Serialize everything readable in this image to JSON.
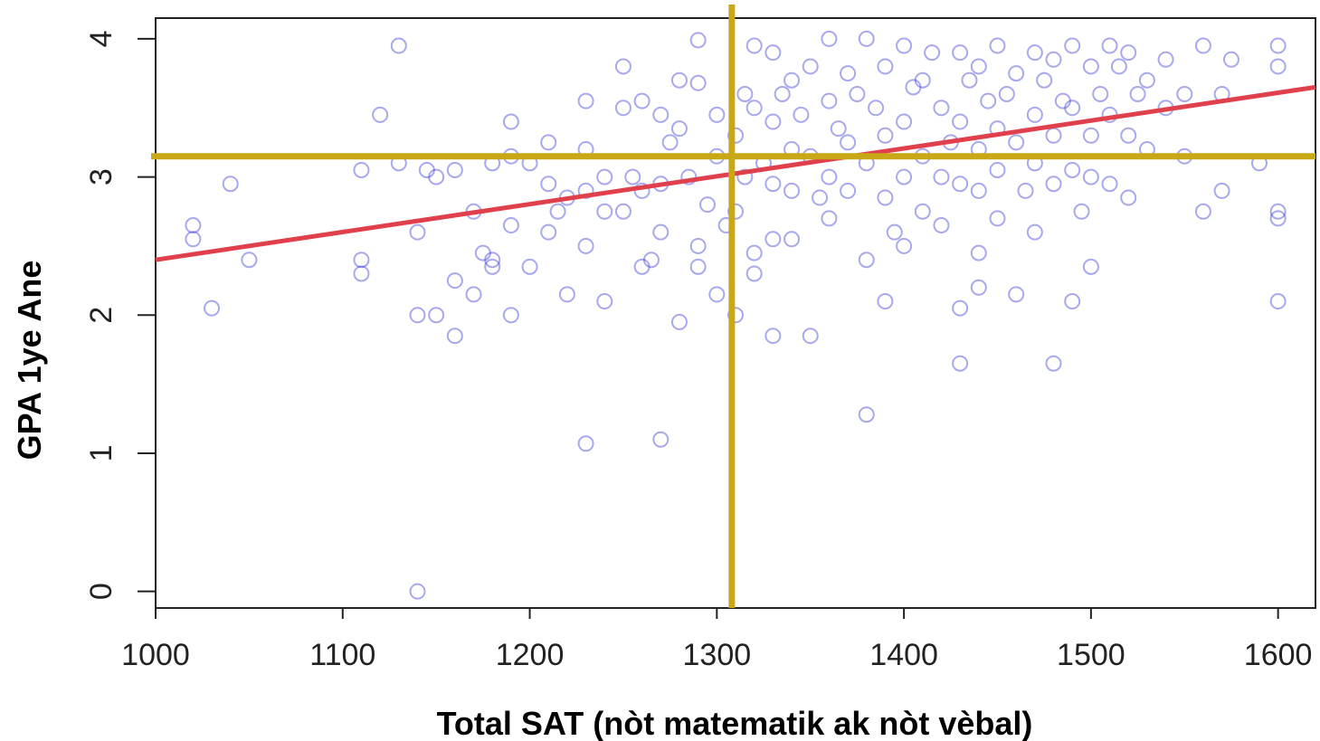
{
  "chart_data": {
    "type": "scatter",
    "title": "",
    "xlabel": "Total SAT (nòt matematik ak nòt vèbal)",
    "ylabel": "GPA 1ye Ane",
    "xlim": [
      1000,
      1620
    ],
    "ylim": [
      -0.12,
      4.15
    ],
    "x_ticks": [
      "1000",
      "1100",
      "1200",
      "1300",
      "1400",
      "1500",
      "1600"
    ],
    "y_ticks": [
      "0",
      "1",
      "2",
      "3",
      "4"
    ],
    "grid": false,
    "legend": "none",
    "colors": {
      "points": "#3d3fd6",
      "fit_line": "#e0404c",
      "mean_lines": "#c9a818"
    },
    "fit_line": {
      "x": [
        1000,
        1620
      ],
      "y": [
        2.4,
        3.65
      ]
    },
    "mean_lines": {
      "x_mean": 1308,
      "y_mean": 3.15
    },
    "points": [
      [
        1020,
        2.65
      ],
      [
        1020,
        2.55
      ],
      [
        1030,
        2.05
      ],
      [
        1040,
        2.95
      ],
      [
        1050,
        2.4
      ],
      [
        1110,
        2.4
      ],
      [
        1110,
        2.3
      ],
      [
        1110,
        3.05
      ],
      [
        1120,
        3.45
      ],
      [
        1130,
        3.95
      ],
      [
        1130,
        3.1
      ],
      [
        1140,
        2.6
      ],
      [
        1140,
        2.0
      ],
      [
        1140,
        0.0
      ],
      [
        1145,
        3.05
      ],
      [
        1150,
        2.0
      ],
      [
        1150,
        3.0
      ],
      [
        1160,
        2.25
      ],
      [
        1160,
        1.85
      ],
      [
        1160,
        3.05
      ],
      [
        1170,
        2.15
      ],
      [
        1170,
        2.75
      ],
      [
        1175,
        2.45
      ],
      [
        1180,
        2.4
      ],
      [
        1180,
        2.35
      ],
      [
        1180,
        3.1
      ],
      [
        1190,
        3.4
      ],
      [
        1190,
        2.0
      ],
      [
        1190,
        3.15
      ],
      [
        1190,
        2.65
      ],
      [
        1200,
        2.35
      ],
      [
        1200,
        3.1
      ],
      [
        1210,
        3.25
      ],
      [
        1210,
        2.6
      ],
      [
        1210,
        2.95
      ],
      [
        1215,
        2.75
      ],
      [
        1220,
        2.15
      ],
      [
        1220,
        2.85
      ],
      [
        1230,
        3.55
      ],
      [
        1230,
        3.2
      ],
      [
        1230,
        2.9
      ],
      [
        1230,
        2.5
      ],
      [
        1230,
        1.07
      ],
      [
        1240,
        2.1
      ],
      [
        1240,
        2.75
      ],
      [
        1240,
        3.0
      ],
      [
        1250,
        3.8
      ],
      [
        1250,
        3.5
      ],
      [
        1250,
        2.75
      ],
      [
        1255,
        3.0
      ],
      [
        1260,
        3.55
      ],
      [
        1260,
        2.35
      ],
      [
        1260,
        2.9
      ],
      [
        1265,
        2.4
      ],
      [
        1270,
        3.45
      ],
      [
        1270,
        2.95
      ],
      [
        1270,
        2.6
      ],
      [
        1270,
        1.1
      ],
      [
        1275,
        3.25
      ],
      [
        1280,
        3.7
      ],
      [
        1280,
        3.35
      ],
      [
        1280,
        1.95
      ],
      [
        1285,
        3.0
      ],
      [
        1290,
        3.68
      ],
      [
        1290,
        2.5
      ],
      [
        1290,
        2.35
      ],
      [
        1290,
        3.99
      ],
      [
        1295,
        2.8
      ],
      [
        1300,
        3.45
      ],
      [
        1300,
        2.15
      ],
      [
        1300,
        3.15
      ],
      [
        1305,
        2.65
      ],
      [
        1310,
        3.3
      ],
      [
        1310,
        2.75
      ],
      [
        1310,
        2.0
      ],
      [
        1315,
        3.6
      ],
      [
        1315,
        3.0
      ],
      [
        1320,
        3.95
      ],
      [
        1320,
        3.5
      ],
      [
        1320,
        2.45
      ],
      [
        1320,
        2.3
      ],
      [
        1325,
        3.1
      ],
      [
        1330,
        3.9
      ],
      [
        1330,
        3.4
      ],
      [
        1330,
        2.95
      ],
      [
        1330,
        2.55
      ],
      [
        1330,
        1.85
      ],
      [
        1335,
        3.6
      ],
      [
        1340,
        3.7
      ],
      [
        1340,
        3.2
      ],
      [
        1340,
        2.9
      ],
      [
        1340,
        2.55
      ],
      [
        1345,
        3.45
      ],
      [
        1350,
        3.8
      ],
      [
        1350,
        3.15
      ],
      [
        1350,
        1.85
      ],
      [
        1355,
        2.85
      ],
      [
        1360,
        4.0
      ],
      [
        1360,
        3.55
      ],
      [
        1360,
        3.0
      ],
      [
        1360,
        2.7
      ],
      [
        1365,
        3.35
      ],
      [
        1370,
        3.75
      ],
      [
        1370,
        3.25
      ],
      [
        1370,
        2.9
      ],
      [
        1375,
        3.6
      ],
      [
        1380,
        4.0
      ],
      [
        1380,
        3.1
      ],
      [
        1380,
        2.4
      ],
      [
        1380,
        1.28
      ],
      [
        1385,
        3.5
      ],
      [
        1390,
        3.8
      ],
      [
        1390,
        3.3
      ],
      [
        1390,
        2.85
      ],
      [
        1390,
        2.1
      ],
      [
        1395,
        2.6
      ],
      [
        1400,
        3.95
      ],
      [
        1400,
        3.4
      ],
      [
        1400,
        3.0
      ],
      [
        1400,
        2.5
      ],
      [
        1405,
        3.65
      ],
      [
        1410,
        3.7
      ],
      [
        1410,
        3.15
      ],
      [
        1410,
        2.75
      ],
      [
        1415,
        3.9
      ],
      [
        1420,
        3.5
      ],
      [
        1420,
        3.0
      ],
      [
        1420,
        2.65
      ],
      [
        1425,
        3.25
      ],
      [
        1430,
        3.9
      ],
      [
        1430,
        3.4
      ],
      [
        1430,
        2.95
      ],
      [
        1430,
        2.05
      ],
      [
        1430,
        1.65
      ],
      [
        1435,
        3.7
      ],
      [
        1440,
        3.8
      ],
      [
        1440,
        3.2
      ],
      [
        1440,
        2.9
      ],
      [
        1440,
        2.45
      ],
      [
        1440,
        2.2
      ],
      [
        1445,
        3.55
      ],
      [
        1450,
        3.95
      ],
      [
        1450,
        3.35
      ],
      [
        1450,
        3.05
      ],
      [
        1450,
        2.7
      ],
      [
        1455,
        3.6
      ],
      [
        1460,
        3.75
      ],
      [
        1460,
        3.25
      ],
      [
        1460,
        2.15
      ],
      [
        1465,
        2.9
      ],
      [
        1470,
        3.9
      ],
      [
        1470,
        3.45
      ],
      [
        1470,
        3.1
      ],
      [
        1470,
        2.6
      ],
      [
        1475,
        3.7
      ],
      [
        1480,
        3.85
      ],
      [
        1480,
        3.3
      ],
      [
        1480,
        2.95
      ],
      [
        1480,
        1.65
      ],
      [
        1485,
        3.55
      ],
      [
        1490,
        3.95
      ],
      [
        1490,
        3.5
      ],
      [
        1490,
        3.05
      ],
      [
        1490,
        2.1
      ],
      [
        1495,
        2.75
      ],
      [
        1500,
        3.8
      ],
      [
        1500,
        3.3
      ],
      [
        1500,
        3.0
      ],
      [
        1500,
        2.35
      ],
      [
        1505,
        3.6
      ],
      [
        1510,
        3.95
      ],
      [
        1510,
        3.45
      ],
      [
        1510,
        2.95
      ],
      [
        1515,
        3.8
      ],
      [
        1520,
        3.9
      ],
      [
        1520,
        3.3
      ],
      [
        1520,
        2.85
      ],
      [
        1525,
        3.6
      ],
      [
        1530,
        3.7
      ],
      [
        1530,
        3.2
      ],
      [
        1540,
        3.85
      ],
      [
        1540,
        3.5
      ],
      [
        1550,
        3.6
      ],
      [
        1550,
        3.15
      ],
      [
        1560,
        3.95
      ],
      [
        1560,
        2.75
      ],
      [
        1570,
        3.6
      ],
      [
        1570,
        2.9
      ],
      [
        1575,
        3.85
      ],
      [
        1590,
        3.1
      ],
      [
        1600,
        3.95
      ],
      [
        1600,
        3.8
      ],
      [
        1600,
        2.75
      ],
      [
        1600,
        2.7
      ],
      [
        1600,
        2.1
      ]
    ]
  }
}
